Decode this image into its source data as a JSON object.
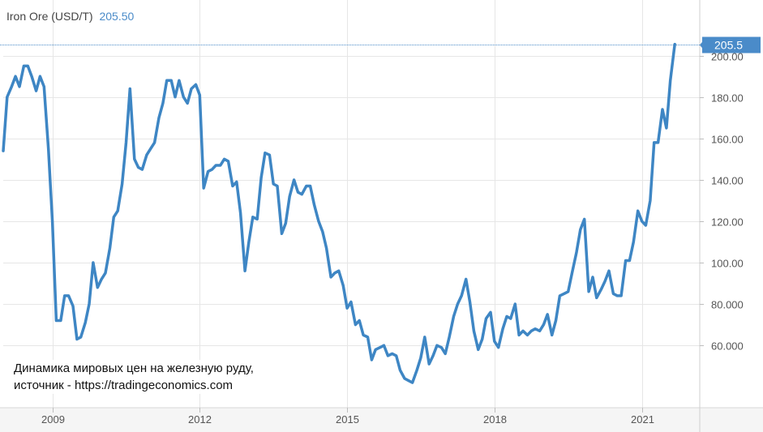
{
  "legend": {
    "label": "Iron Ore (USD/T)",
    "value": "205.50"
  },
  "caption": {
    "line1": "Динамика мировых цен на железную руду,",
    "line2": "источник - https://tradingeconomics.com"
  },
  "chart_data": {
    "type": "line",
    "title": "",
    "xlabel": "",
    "ylabel": "",
    "x_ticks": [
      "2009",
      "2012",
      "2015",
      "2018",
      "2021"
    ],
    "y_ticks": [
      "60.000",
      "80.000",
      "100.00",
      "120.00",
      "140.00",
      "160.00",
      "180.00",
      "200.00"
    ],
    "ylim": [
      35,
      212
    ],
    "xlim": [
      2008.0,
      2021.75
    ],
    "grid": true,
    "current_value_label": "205.5",
    "colors": {
      "line": "#3e86c4",
      "grid": "#e6e6e6",
      "reference": "#4a8bc9",
      "badge": "#4a8bc9"
    },
    "series": [
      {
        "values": [
          [
            2008.0,
            154
          ],
          [
            2008.08,
            180
          ],
          [
            2008.17,
            185
          ],
          [
            2008.25,
            190
          ],
          [
            2008.33,
            185
          ],
          [
            2008.42,
            195
          ],
          [
            2008.5,
            195
          ],
          [
            2008.58,
            190
          ],
          [
            2008.67,
            183
          ],
          [
            2008.75,
            190
          ],
          [
            2008.83,
            185
          ],
          [
            2008.92,
            155
          ],
          [
            2009.0,
            120
          ],
          [
            2009.08,
            72
          ],
          [
            2009.17,
            72
          ],
          [
            2009.25,
            84
          ],
          [
            2009.33,
            84
          ],
          [
            2009.42,
            79
          ],
          [
            2009.5,
            63
          ],
          [
            2009.58,
            64
          ],
          [
            2009.67,
            71
          ],
          [
            2009.75,
            80
          ],
          [
            2009.83,
            100
          ],
          [
            2009.92,
            88
          ],
          [
            2010.0,
            92
          ],
          [
            2010.08,
            95
          ],
          [
            2010.17,
            107
          ],
          [
            2010.25,
            122
          ],
          [
            2010.33,
            125
          ],
          [
            2010.42,
            138
          ],
          [
            2010.5,
            158
          ],
          [
            2010.58,
            184
          ],
          [
            2010.67,
            150
          ],
          [
            2010.75,
            146
          ],
          [
            2010.83,
            145
          ],
          [
            2010.92,
            152
          ],
          [
            2011.0,
            155
          ],
          [
            2011.08,
            158
          ],
          [
            2011.17,
            170
          ],
          [
            2011.25,
            177
          ],
          [
            2011.33,
            188
          ],
          [
            2011.42,
            188
          ],
          [
            2011.5,
            180
          ],
          [
            2011.58,
            188
          ],
          [
            2011.67,
            180
          ],
          [
            2011.75,
            177
          ],
          [
            2011.83,
            184
          ],
          [
            2011.92,
            186
          ],
          [
            2012.0,
            181
          ],
          [
            2012.08,
            136
          ],
          [
            2012.17,
            144
          ],
          [
            2012.25,
            145
          ],
          [
            2012.33,
            147
          ],
          [
            2012.42,
            147
          ],
          [
            2012.5,
            150
          ],
          [
            2012.58,
            149
          ],
          [
            2012.67,
            137
          ],
          [
            2012.75,
            139
          ],
          [
            2012.83,
            124
          ],
          [
            2012.92,
            96
          ],
          [
            2013.0,
            110
          ],
          [
            2013.08,
            122
          ],
          [
            2013.17,
            121
          ],
          [
            2013.25,
            141
          ],
          [
            2013.33,
            153
          ],
          [
            2013.42,
            152
          ],
          [
            2013.5,
            138
          ],
          [
            2013.58,
            137
          ],
          [
            2013.67,
            114
          ],
          [
            2013.75,
            119
          ],
          [
            2013.83,
            132
          ],
          [
            2013.92,
            140
          ],
          [
            2014.0,
            134
          ],
          [
            2014.08,
            133
          ],
          [
            2014.17,
            137
          ],
          [
            2014.25,
            137
          ],
          [
            2014.33,
            128
          ],
          [
            2014.42,
            120
          ],
          [
            2014.5,
            115
          ],
          [
            2014.58,
            107
          ],
          [
            2014.67,
            93
          ],
          [
            2014.75,
            95
          ],
          [
            2014.83,
            96
          ],
          [
            2014.92,
            89
          ],
          [
            2015.0,
            78
          ],
          [
            2015.08,
            81
          ],
          [
            2015.17,
            70
          ],
          [
            2015.25,
            72
          ],
          [
            2015.33,
            65
          ],
          [
            2015.42,
            64
          ],
          [
            2015.5,
            53
          ],
          [
            2015.58,
            58
          ],
          [
            2015.67,
            59
          ],
          [
            2015.75,
            60
          ],
          [
            2015.83,
            55
          ],
          [
            2015.92,
            56
          ],
          [
            2016.0,
            55
          ],
          [
            2016.08,
            48
          ],
          [
            2016.17,
            44
          ],
          [
            2016.25,
            43
          ],
          [
            2016.33,
            42
          ],
          [
            2016.42,
            48
          ],
          [
            2016.5,
            54
          ],
          [
            2016.58,
            64
          ],
          [
            2016.67,
            51
          ],
          [
            2016.75,
            55
          ],
          [
            2016.83,
            60
          ],
          [
            2016.92,
            59
          ],
          [
            2017.0,
            56
          ],
          [
            2017.08,
            64
          ],
          [
            2017.17,
            74
          ],
          [
            2017.25,
            80
          ],
          [
            2017.33,
            84
          ],
          [
            2017.42,
            92
          ],
          [
            2017.5,
            81
          ],
          [
            2017.58,
            67
          ],
          [
            2017.67,
            58
          ],
          [
            2017.75,
            63
          ],
          [
            2017.83,
            73
          ],
          [
            2017.92,
            76
          ],
          [
            2018.0,
            62
          ],
          [
            2018.08,
            59
          ],
          [
            2018.17,
            68
          ],
          [
            2018.25,
            74
          ],
          [
            2018.33,
            73
          ],
          [
            2018.42,
            80
          ],
          [
            2018.5,
            65
          ],
          [
            2018.58,
            67
          ],
          [
            2018.67,
            65
          ],
          [
            2018.75,
            67
          ],
          [
            2018.83,
            68
          ],
          [
            2018.92,
            67
          ],
          [
            2019.0,
            70
          ],
          [
            2019.08,
            75
          ],
          [
            2019.17,
            65
          ],
          [
            2019.25,
            72
          ],
          [
            2019.33,
            84
          ],
          [
            2019.42,
            85
          ],
          [
            2019.5,
            86
          ],
          [
            2019.58,
            95
          ],
          [
            2019.67,
            105
          ],
          [
            2019.75,
            116
          ],
          [
            2019.83,
            121
          ],
          [
            2019.92,
            86
          ],
          [
            2020.0,
            93
          ],
          [
            2020.08,
            83
          ],
          [
            2020.17,
            87
          ],
          [
            2020.25,
            91
          ],
          [
            2020.33,
            96
          ],
          [
            2020.42,
            85
          ],
          [
            2020.5,
            84
          ],
          [
            2020.58,
            84
          ],
          [
            2020.67,
            101
          ],
          [
            2020.75,
            101
          ],
          [
            2020.83,
            110
          ],
          [
            2020.92,
            125
          ],
          [
            2021.0,
            120
          ],
          [
            2021.08,
            118
          ],
          [
            2021.17,
            130
          ],
          [
            2021.25,
            158
          ],
          [
            2021.33,
            158
          ],
          [
            2021.42,
            174
          ],
          [
            2021.5,
            165
          ],
          [
            2021.58,
            188
          ],
          [
            2021.67,
            205.5
          ]
        ]
      }
    ]
  }
}
